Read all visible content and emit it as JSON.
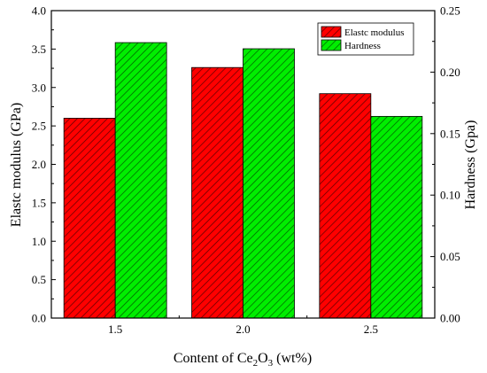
{
  "chart_data": {
    "type": "bar",
    "categories": [
      "1.5",
      "2.0",
      "2.5"
    ],
    "series": [
      {
        "name": "Elastc modulus",
        "axis": "left",
        "values": [
          2.6,
          3.26,
          2.92
        ],
        "color": "#ff0000",
        "hatch": "#4a0000"
      },
      {
        "name": "Hardness",
        "axis": "right",
        "values": [
          0.224,
          0.219,
          0.164
        ],
        "color": "#00ee00",
        "hatch": "#004a00"
      }
    ],
    "xlabel_prefix": "Content of Ce",
    "xlabel_sub1": "2",
    "xlabel_mid": "O",
    "xlabel_sub2": "3",
    "xlabel_suffix": " (wt%)",
    "ylabel_left": "Elastc modulus (GPa)",
    "ylabel_right": "Hardness (Gpa)",
    "ylim_left": [
      0,
      4.0
    ],
    "ylim_right": [
      0,
      0.25
    ],
    "yticks_left": [
      "0.0",
      "0.5",
      "1.0",
      "1.5",
      "2.0",
      "2.5",
      "3.0",
      "3.5",
      "4.0"
    ],
    "yticks_right": [
      "0.00",
      "0.05",
      "0.10",
      "0.15",
      "0.20",
      "0.25"
    ],
    "legend_position": "top-right",
    "grid": false
  }
}
